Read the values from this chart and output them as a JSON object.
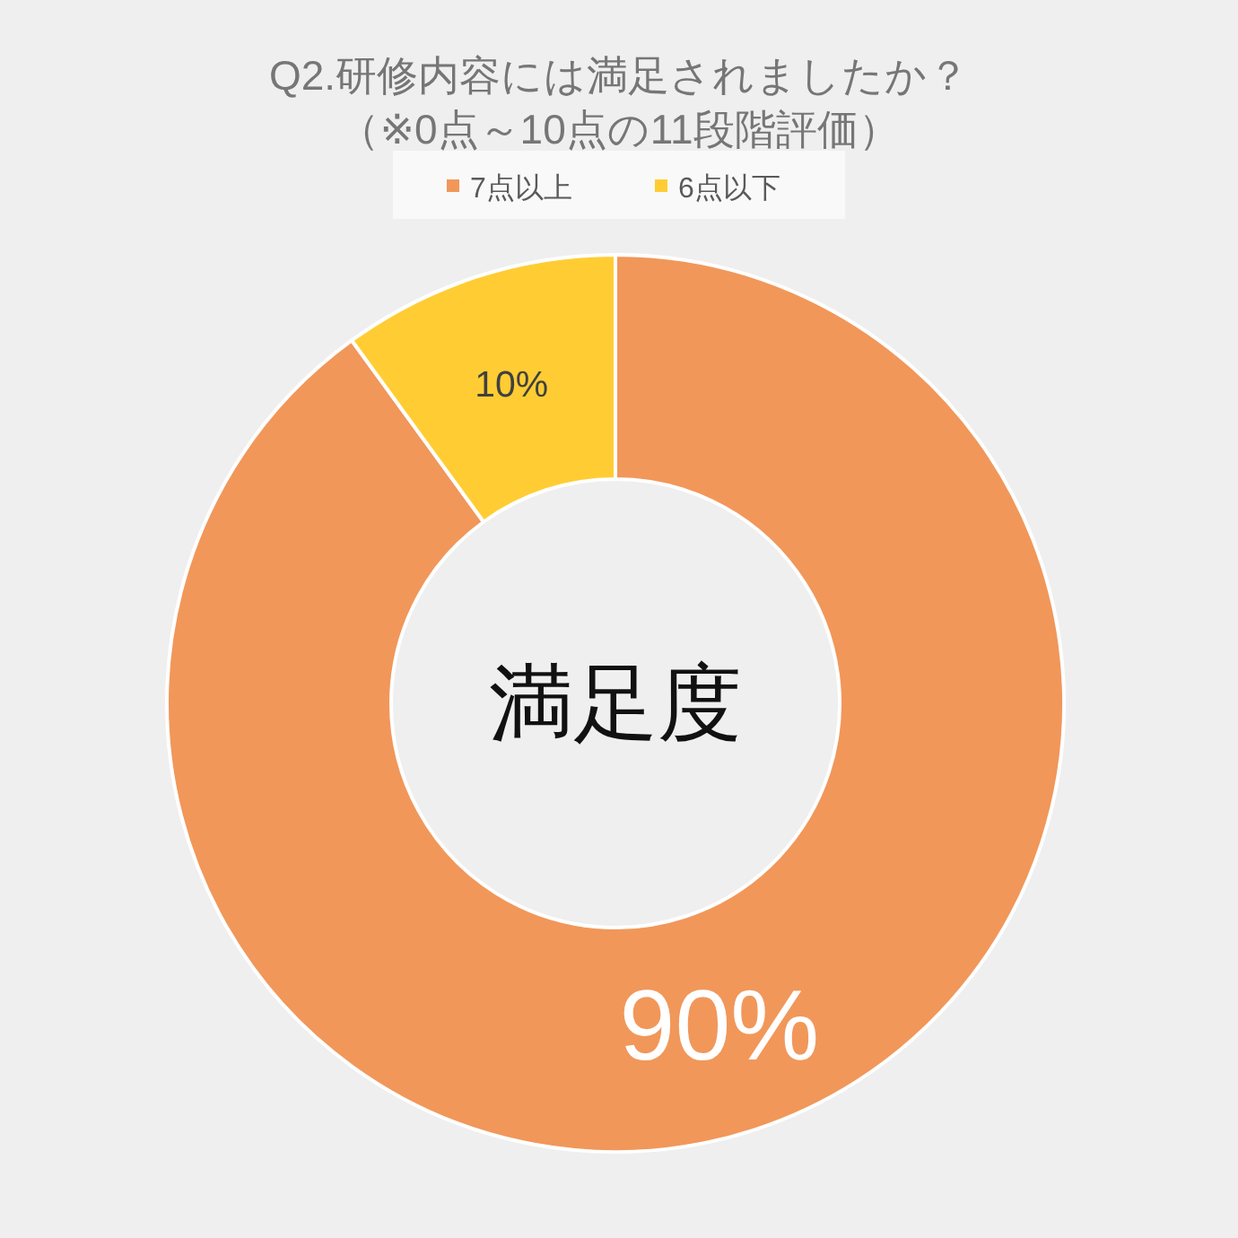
{
  "chart_data": {
    "type": "donut",
    "title": "Q2.研修内容には満足されましたか？",
    "subtitle": "（※0点～10点の11段階評価）",
    "categories": [
      "7点以上",
      "6点以下"
    ],
    "values": [
      90,
      10
    ],
    "colors": [
      "#f1975a",
      "#ffcd33"
    ],
    "value_labels": [
      "90%",
      "10%"
    ],
    "annotations": [
      "満足度"
    ],
    "legend": "top"
  }
}
